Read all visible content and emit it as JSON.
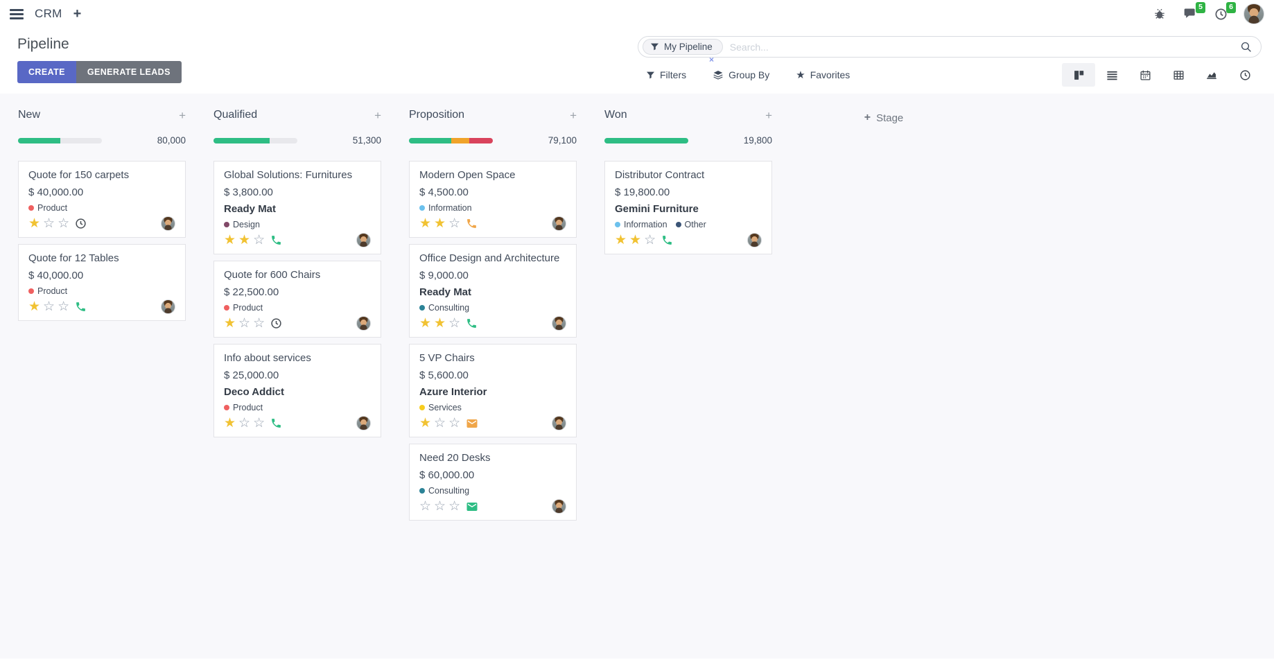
{
  "navbar": {
    "app_name": "CRM",
    "messages_badge": "5",
    "activities_badge": "6"
  },
  "control_panel": {
    "title": "Pipeline",
    "create_label": "CREATE",
    "generate_leads_label": "GENERATE LEADS",
    "search": {
      "facet_label": "My Pipeline",
      "placeholder": "Search...",
      "facet_remove": "×"
    },
    "filters_label": "Filters",
    "group_by_label": "Group By",
    "favorites_label": "Favorites"
  },
  "icons": {
    "plus": "+",
    "star_filled": "★",
    "star_empty": "☆",
    "favorites_star": "★"
  },
  "colors": {
    "accent": "#5968c5",
    "success": "#2ebd84",
    "warning": "#f0a32a",
    "danger": "#d9435c",
    "badge_green": "#2fb344",
    "progress_track": "#e8e8ec"
  },
  "board": {
    "add_stage_label": "Stage",
    "columns": [
      {
        "name": "New",
        "counter": "80,000",
        "progress": [
          {
            "color": "#2ebd84",
            "pct": 50
          }
        ],
        "cards": [
          {
            "title": "Quote for 150 carpets",
            "amount": "$ 40,000.00",
            "partner": null,
            "tags": [
              {
                "label": "Product",
                "color": "#ef6060"
              }
            ],
            "stars": 1,
            "action_icon": "clock",
            "action_color": "#4a5057"
          },
          {
            "title": "Quote for 12 Tables",
            "amount": "$ 40,000.00",
            "partner": null,
            "tags": [
              {
                "label": "Product",
                "color": "#ef6060"
              }
            ],
            "stars": 1,
            "action_icon": "phone",
            "action_color": "#2ebd84"
          }
        ]
      },
      {
        "name": "Qualified",
        "counter": "51,300",
        "progress": [
          {
            "color": "#2ebd84",
            "pct": 67
          }
        ],
        "cards": [
          {
            "title": "Global Solutions: Furnitures",
            "amount": "$ 3,800.00",
            "partner": "Ready Mat",
            "tags": [
              {
                "label": "Design",
                "color": "#814968"
              }
            ],
            "stars": 2,
            "action_icon": "phone",
            "action_color": "#2ebd84"
          },
          {
            "title": "Quote for 600 Chairs",
            "amount": "$ 22,500.00",
            "partner": null,
            "tags": [
              {
                "label": "Product",
                "color": "#ef6060"
              }
            ],
            "stars": 1,
            "action_icon": "clock",
            "action_color": "#4a5057"
          },
          {
            "title": "Info about services",
            "amount": "$ 25,000.00",
            "partner": "Deco Addict",
            "tags": [
              {
                "label": "Product",
                "color": "#ef6060"
              }
            ],
            "stars": 1,
            "action_icon": "phone",
            "action_color": "#2ebd84"
          }
        ]
      },
      {
        "name": "Proposition",
        "counter": "79,100",
        "progress": [
          {
            "color": "#2ebd84",
            "pct": 50
          },
          {
            "color": "#f0a32a",
            "pct": 22
          },
          {
            "color": "#d9435c",
            "pct": 28
          }
        ],
        "cards": [
          {
            "title": "Modern Open Space",
            "amount": "$ 4,500.00",
            "partner": null,
            "tags": [
              {
                "label": "Information",
                "color": "#6cc1ed"
              }
            ],
            "stars": 2,
            "action_icon": "phone",
            "action_color": "#f0a649"
          },
          {
            "title": "Office Design and Architecture",
            "amount": "$ 9,000.00",
            "partner": "Ready Mat",
            "tags": [
              {
                "label": "Consulting",
                "color": "#2c8397"
              }
            ],
            "stars": 2,
            "action_icon": "phone",
            "action_color": "#2ebd84"
          },
          {
            "title": "5 VP Chairs",
            "amount": "$ 5,600.00",
            "partner": "Azure Interior",
            "tags": [
              {
                "label": "Services",
                "color": "#f7cd1f"
              }
            ],
            "stars": 1,
            "action_icon": "envelope",
            "action_color": "#f0a649"
          },
          {
            "title": "Need 20 Desks",
            "amount": "$ 60,000.00",
            "partner": null,
            "tags": [
              {
                "label": "Consulting",
                "color": "#2c8397"
              }
            ],
            "stars": 0,
            "action_icon": "envelope",
            "action_color": "#2ebd84"
          }
        ]
      },
      {
        "name": "Won",
        "counter": "19,800",
        "progress": [
          {
            "color": "#2ebd84",
            "pct": 100
          }
        ],
        "cards": [
          {
            "title": "Distributor Contract",
            "amount": "$ 19,800.00",
            "partner": "Gemini Furniture",
            "tags": [
              {
                "label": "Information",
                "color": "#6cc1ed"
              },
              {
                "label": "Other",
                "color": "#3c5577"
              }
            ],
            "stars": 2,
            "action_icon": "phone",
            "action_color": "#2ebd84"
          }
        ]
      }
    ]
  }
}
